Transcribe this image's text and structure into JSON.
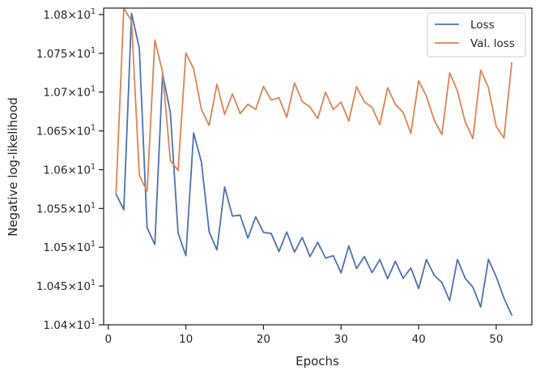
{
  "chart_data": {
    "type": "line",
    "title": "",
    "xlabel": "Epochs",
    "ylabel": "Negative log-likelihood",
    "xlim": [
      -0.6,
      54.6
    ],
    "ylim": [
      10.4,
      10.8083
    ],
    "x_ticks": [
      0,
      10,
      20,
      30,
      40,
      50
    ],
    "y_ticks": [
      {
        "value": 10.4,
        "mantissa": "1.04",
        "exp": "1"
      },
      {
        "value": 10.45,
        "mantissa": "1.045",
        "exp": "1"
      },
      {
        "value": 10.5,
        "mantissa": "1.05",
        "exp": "1"
      },
      {
        "value": 10.55,
        "mantissa": "1.055",
        "exp": "1"
      },
      {
        "value": 10.6,
        "mantissa": "1.06",
        "exp": "1"
      },
      {
        "value": 10.65,
        "mantissa": "1.065",
        "exp": "1"
      },
      {
        "value": 10.7,
        "mantissa": "1.07",
        "exp": "1"
      },
      {
        "value": 10.75,
        "mantissa": "1.075",
        "exp": "1"
      },
      {
        "value": 10.8,
        "mantissa": "1.08",
        "exp": "1"
      }
    ],
    "y_tick_base": "10",
    "y_tick_times": "×",
    "grid": false,
    "legend_position": "top-right",
    "x": [
      1,
      2,
      3,
      4,
      5,
      6,
      7,
      8,
      9,
      10,
      11,
      12,
      13,
      14,
      15,
      16,
      17,
      18,
      19,
      20,
      21,
      22,
      23,
      24,
      25,
      26,
      27,
      28,
      29,
      30,
      31,
      32,
      33,
      34,
      35,
      36,
      37,
      38,
      39,
      40,
      41,
      42,
      43,
      44,
      45,
      46,
      47,
      48,
      49,
      50,
      51,
      52
    ],
    "series": [
      {
        "name": "Loss",
        "color": "#4c72b0",
        "values": [
          10.5685,
          10.5484,
          10.8014,
          10.7568,
          10.5251,
          10.5034,
          10.7237,
          10.6738,
          10.5182,
          10.4891,
          10.6473,
          10.6099,
          10.5201,
          10.4965,
          10.5777,
          10.5402,
          10.5413,
          10.5117,
          10.5393,
          10.5192,
          10.5177,
          10.4945,
          10.5196,
          10.4937,
          10.5126,
          10.4879,
          10.5063,
          10.486,
          10.489,
          10.467,
          10.5017,
          10.4725,
          10.488,
          10.4672,
          10.4841,
          10.4594,
          10.4818,
          10.4599,
          10.4733,
          10.4466,
          10.4841,
          10.464,
          10.4544,
          10.4312,
          10.4842,
          10.46,
          10.4484,
          10.4229,
          10.4844,
          10.462,
          10.4343,
          10.4125
        ]
      },
      {
        "name": "Val. loss",
        "color": "#dd8452",
        "values": [
          10.5699,
          10.8082,
          10.7918,
          10.5927,
          10.5719,
          10.7672,
          10.7257,
          10.6119,
          10.599,
          10.7505,
          10.7302,
          10.6778,
          10.6571,
          10.7102,
          10.6713,
          10.6977,
          10.6723,
          10.6843,
          10.6776,
          10.7072,
          10.6899,
          10.6927,
          10.6676,
          10.7119,
          10.6878,
          10.6808,
          10.666,
          10.6999,
          10.6774,
          10.6872,
          10.6627,
          10.707,
          10.6876,
          10.6802,
          10.6579,
          10.7057,
          10.6842,
          10.6738,
          10.6469,
          10.7147,
          10.6949,
          10.6641,
          10.6453,
          10.7248,
          10.7014,
          10.6617,
          10.6401,
          10.7283,
          10.7059,
          10.6555,
          10.6408,
          10.7378
        ]
      }
    ]
  }
}
